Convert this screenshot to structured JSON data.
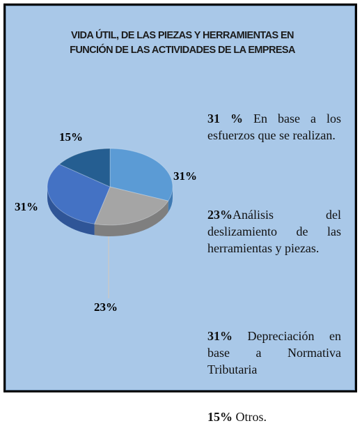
{
  "chart_data": {
    "type": "pie",
    "title": [
      "VIDA ÚTIL, DE LAS PIEZAS Y HERRAMIENTAS EN",
      "FUNCIÓN DE LAS ACTIVIDADES DE LA EMPRESA"
    ],
    "categories": [
      "En base a los esfuerzos que se realizan.",
      "Análisis del deslizamiento de las herramientas y piezas.",
      "Depreciación en base a Normativa Tributaria",
      "Otros."
    ],
    "legend_labels": [
      "31 %",
      "23%",
      "31%",
      "15%"
    ],
    "values": [
      31,
      23,
      31,
      15
    ],
    "value_labels": [
      "31%",
      "23%",
      "31%",
      "15%"
    ],
    "colors": [
      "#5b9bd5",
      "#a5a5a5",
      "#4472c4",
      "#255e91"
    ],
    "side_colors": [
      "#3f7ab3",
      "#7f7f7f",
      "#2f5597",
      "#1a4670"
    ]
  }
}
